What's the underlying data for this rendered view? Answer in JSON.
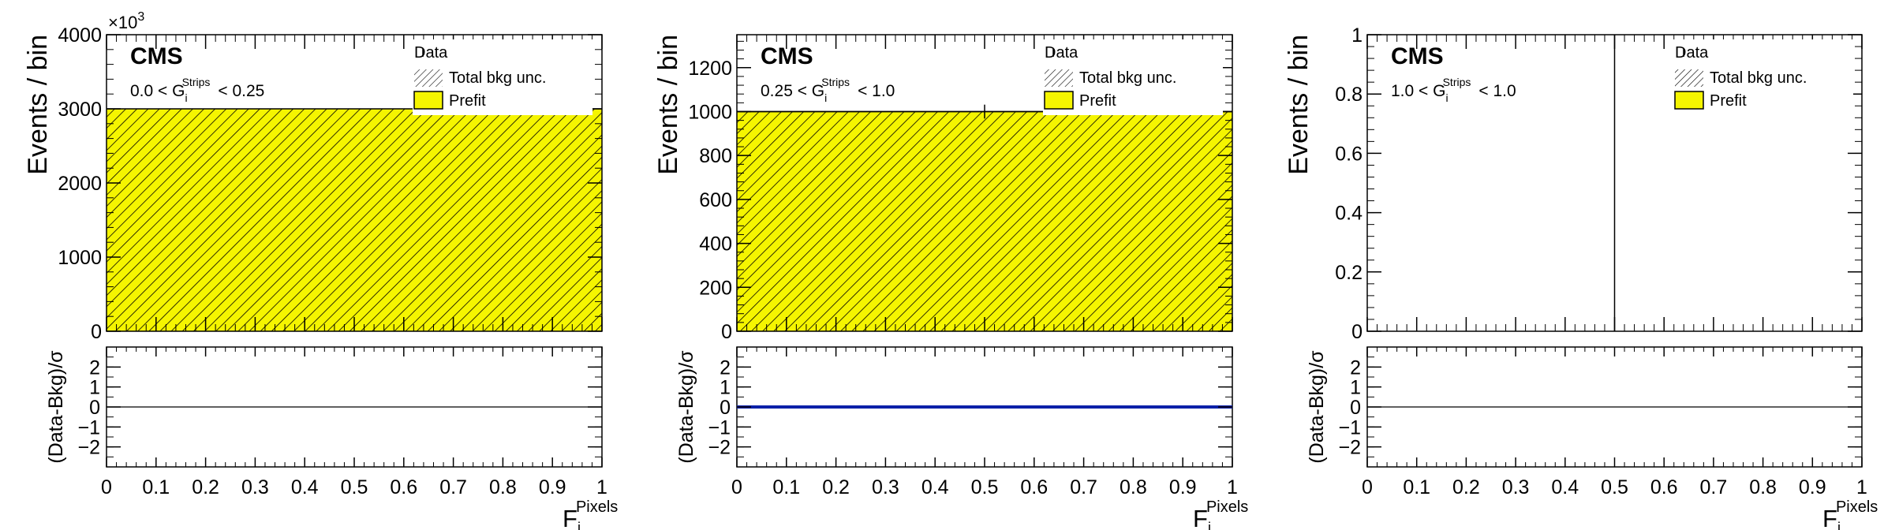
{
  "chart_data": [
    {
      "type": "bar",
      "experiment": "CMS",
      "region_label": {
        "lo": "0.0 < G",
        "sub": "i",
        "sup": "Strips",
        "hi": "< 0.25"
      },
      "y_exponent": "×10",
      "y_exponent_power": "3",
      "ylabel": "Events / bin",
      "ratio_ylabel": "(Data-Bkg)/σ",
      "xlabel": {
        "base": "F",
        "sub": "i",
        "sup": "Pixels"
      },
      "xlim": [
        0,
        1
      ],
      "ylim": [
        0,
        4000
      ],
      "yticks": [
        0,
        1000,
        2000,
        3000,
        4000
      ],
      "ytick_labels": [
        "0",
        "1000",
        "2000",
        "3000",
        "4000"
      ],
      "xticks": [
        0,
        0.1,
        0.2,
        0.3,
        0.4,
        0.5,
        0.6,
        0.7,
        0.8,
        0.9,
        1
      ],
      "xtick_labels": [
        "0",
        "0.1",
        "0.2",
        "0.3",
        "0.4",
        "0.5",
        "0.6",
        "0.7",
        "0.8",
        "0.9",
        "1"
      ],
      "ratio_ylim": [
        -3,
        3
      ],
      "ratio_yticks": [
        -2,
        -1,
        0,
        1,
        2
      ],
      "ratio_ytick_labels": [
        "−2",
        "−1",
        "0",
        "1",
        "2"
      ],
      "bins": [
        [
          0,
          1
        ]
      ],
      "prefit": [
        3000
      ],
      "data": [],
      "pull_line": false,
      "legend": {
        "data": "Data",
        "unc": "Total bkg unc.",
        "prefit": "Prefit"
      },
      "legend_position": "top-right"
    },
    {
      "type": "bar",
      "experiment": "CMS",
      "region_label": {
        "lo": "0.25 < G",
        "sub": "i",
        "sup": "Strips",
        "hi": "< 1.0"
      },
      "y_exponent": "",
      "y_exponent_power": "",
      "ylabel": "Events / bin",
      "ratio_ylabel": "(Data-Bkg)/σ",
      "xlabel": {
        "base": "F",
        "sub": "i",
        "sup": "Pixels"
      },
      "xlim": [
        0,
        1
      ],
      "ylim": [
        0,
        1350
      ],
      "yticks": [
        0,
        200,
        400,
        600,
        800,
        1000,
        1200
      ],
      "ytick_labels": [
        "0",
        "200",
        "400",
        "600",
        "800",
        "1000",
        "1200"
      ],
      "xticks": [
        0,
        0.1,
        0.2,
        0.3,
        0.4,
        0.5,
        0.6,
        0.7,
        0.8,
        0.9,
        1
      ],
      "xtick_labels": [
        "0",
        "0.1",
        "0.2",
        "0.3",
        "0.4",
        "0.5",
        "0.6",
        "0.7",
        "0.8",
        "0.9",
        "1"
      ],
      "ratio_ylim": [
        -3,
        3
      ],
      "ratio_yticks": [
        -2,
        -1,
        0,
        1,
        2
      ],
      "ratio_ytick_labels": [
        "−2",
        "−1",
        "0",
        "1",
        "2"
      ],
      "bins": [
        [
          0,
          1
        ]
      ],
      "prefit": [
        1000
      ],
      "data": [
        {
          "x": 0.5,
          "y": 1000,
          "xerr": 0.5,
          "yerr": 31.6
        }
      ],
      "pull_line": true,
      "legend": {
        "data": "Data",
        "unc": "Total bkg unc.",
        "prefit": "Prefit"
      },
      "legend_position": "top-right"
    },
    {
      "type": "bar",
      "experiment": "CMS",
      "region_label": {
        "lo": "1.0 < G",
        "sub": "i",
        "sup": "Strips",
        "hi": "< 1.0"
      },
      "y_exponent": "",
      "y_exponent_power": "",
      "ylabel": "Events / bin",
      "ratio_ylabel": "(Data-Bkg)/σ",
      "xlabel": {
        "base": "F",
        "sub": "i",
        "sup": "Pixels"
      },
      "xlim": [
        0,
        1
      ],
      "ylim": [
        0,
        1
      ],
      "yticks": [
        0,
        0.2,
        0.4,
        0.6,
        0.8,
        1
      ],
      "ytick_labels": [
        "0",
        "0.2",
        "0.4",
        "0.6",
        "0.8",
        "1"
      ],
      "xticks": [
        0,
        0.1,
        0.2,
        0.3,
        0.4,
        0.5,
        0.6,
        0.7,
        0.8,
        0.9,
        1
      ],
      "xtick_labels": [
        "0",
        "0.1",
        "0.2",
        "0.3",
        "0.4",
        "0.5",
        "0.6",
        "0.7",
        "0.8",
        "0.9",
        "1"
      ],
      "ratio_ylim": [
        -3,
        3
      ],
      "ratio_yticks": [
        -2,
        -1,
        0,
        1,
        2
      ],
      "ratio_ytick_labels": [
        "−2",
        "−1",
        "0",
        "1",
        "2"
      ],
      "bins": [
        [
          0,
          1
        ]
      ],
      "prefit": [
        0
      ],
      "data": [],
      "vertical_marker_x": 0.5,
      "pull_line": false,
      "legend": {
        "data": "Data",
        "unc": "Total bkg unc.",
        "prefit": "Prefit"
      },
      "legend_position": "top-right"
    }
  ],
  "colors": {
    "prefit_fill": "#f5f500",
    "hatch": "#000000",
    "pull_line": "#0a20a8",
    "axis": "#000000"
  }
}
